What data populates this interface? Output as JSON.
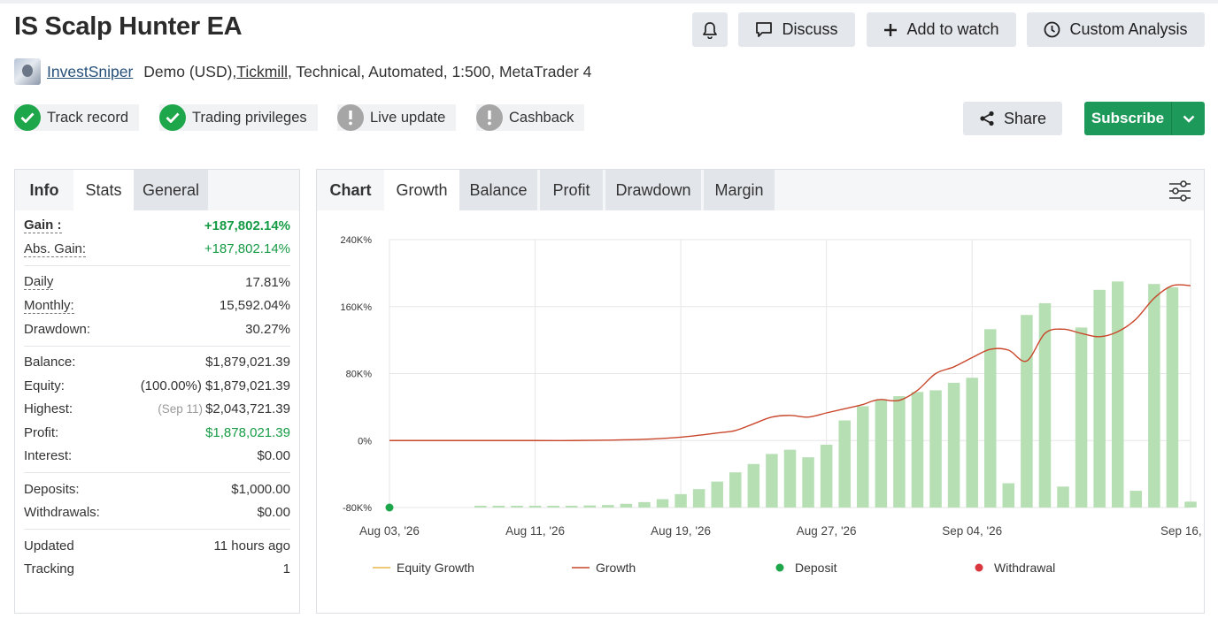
{
  "header": {
    "title": "IS Scalp Hunter EA",
    "buttons": {
      "discuss": "Discuss",
      "watch": "Add to watch",
      "custom": "Custom Analysis"
    },
    "author": "InvestSniper",
    "info_a": "Demo (USD), ",
    "broker": "Tickmill",
    "info_b": ", Technical, Automated, 1:500, MetaTrader 4"
  },
  "badges": {
    "track": "Track record",
    "privileges": "Trading privileges",
    "live": "Live update",
    "cashback": "Cashback"
  },
  "actions": {
    "share": "Share",
    "subscribe": "Subscribe"
  },
  "left_tabs": {
    "info": "Info",
    "stats": "Stats",
    "general": "General"
  },
  "stats": {
    "gain_k": "Gain :",
    "gain_v": "+187,802.14%",
    "absgain_k": "Abs. Gain:",
    "absgain_v": "+187,802.14%",
    "daily_k": "Daily",
    "daily_v": "17.81%",
    "monthly_k": "Monthly:",
    "monthly_v": "15,592.04%",
    "drawdown_k": "Drawdown:",
    "drawdown_v": "30.27%",
    "balance_k": "Balance:",
    "balance_v": "$1,879,021.39",
    "equity_k": "Equity:",
    "equity_v": "(100.00%) $1,879,021.39",
    "highest_k": "Highest:",
    "highest_note": "(Sep 11)",
    "highest_v": "$2,043,721.39",
    "profit_k": "Profit:",
    "profit_v": "$1,878,021.39",
    "interest_k": "Interest:",
    "interest_v": "$0.00",
    "deposits_k": "Deposits:",
    "deposits_v": "$1,000.00",
    "withdrawals_k": "Withdrawals:",
    "withdrawals_v": "$0.00",
    "updated_k": "Updated",
    "updated_v": "11 hours ago",
    "tracking_k": "Tracking",
    "tracking_v": "1"
  },
  "chart_tabs": {
    "chart": "Chart",
    "growth": "Growth",
    "balance": "Balance",
    "profit": "Profit",
    "drawdown": "Drawdown",
    "margin": "Margin"
  },
  "chart_data": {
    "type": "bar",
    "y_ticks": [
      "240K%",
      "160K%",
      "80K%",
      "0%",
      "-80K%"
    ],
    "y_tick_values": [
      240000,
      160000,
      80000,
      0,
      -80000
    ],
    "ylim": [
      -80000,
      240000
    ],
    "x_ticks": [
      "Aug 03, '26",
      "Aug 11, '26",
      "Aug 19, '26",
      "Aug 27, '26",
      "Sep 04, '26",
      "Sep 16, '26"
    ],
    "x_tick_days": [
      0,
      8,
      16,
      24,
      32,
      44
    ],
    "xlim": [
      0,
      44
    ],
    "bars": {
      "x": [
        5,
        6,
        7,
        8,
        9,
        10,
        11,
        12,
        13,
        14,
        15,
        16,
        17,
        18,
        19,
        20,
        21,
        22,
        23,
        24,
        25,
        26,
        27,
        28,
        29,
        30,
        31,
        32,
        33,
        34,
        35,
        36,
        37,
        38,
        39,
        40,
        41,
        42,
        43,
        44
      ],
      "values": [
        -78000,
        -78000,
        -79000,
        -78500,
        -79000,
        -78000,
        -77500,
        -77000,
        -75500,
        -73500,
        -70000,
        -64000,
        -58000,
        -49000,
        -38000,
        -28000,
        -16000,
        -11000,
        -20000,
        -5000,
        24000,
        41000,
        49000,
        53000,
        58000,
        60000,
        69000,
        75000,
        133000,
        -51000,
        150000,
        164000,
        -55000,
        135000,
        180000,
        190000,
        -60000,
        187000,
        183000,
        -73000
      ]
    },
    "growth_line": {
      "x": [
        0,
        4,
        8,
        10,
        12,
        14,
        16,
        18,
        19,
        20,
        21,
        22,
        23,
        24,
        25,
        26,
        26.5,
        27,
        28,
        29,
        30,
        31,
        32,
        33,
        34,
        35,
        36,
        37,
        38,
        39,
        40,
        41,
        42,
        43,
        44
      ],
      "values": [
        0,
        0,
        0,
        0,
        500,
        1500,
        4000,
        9000,
        12000,
        20000,
        28000,
        30000,
        28000,
        33000,
        38000,
        43000,
        47000,
        49000,
        48000,
        60000,
        80000,
        88000,
        99000,
        109000,
        108000,
        95000,
        128000,
        133000,
        128000,
        124000,
        130000,
        145000,
        170000,
        185000,
        185000
      ]
    },
    "legend": [
      "Equity Growth",
      "Growth",
      "Deposit",
      "Withdrawal"
    ],
    "colors": {
      "bar": "#b6dfb3",
      "growth": "#c9462b",
      "equity": "#e8b84a",
      "deposit": "#1ea64a",
      "withdrawal": "#d9363e",
      "grid": "#e6e6e6"
    },
    "deposit_points": [
      {
        "x": 0,
        "y": -80000
      }
    ]
  }
}
